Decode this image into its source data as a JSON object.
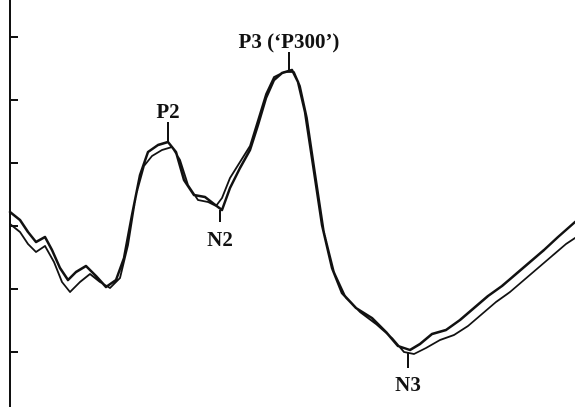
{
  "labels": {
    "p2": "P2",
    "n2": "N2",
    "p3": "P3 (‘P300’)",
    "n3": "N3"
  }
}
